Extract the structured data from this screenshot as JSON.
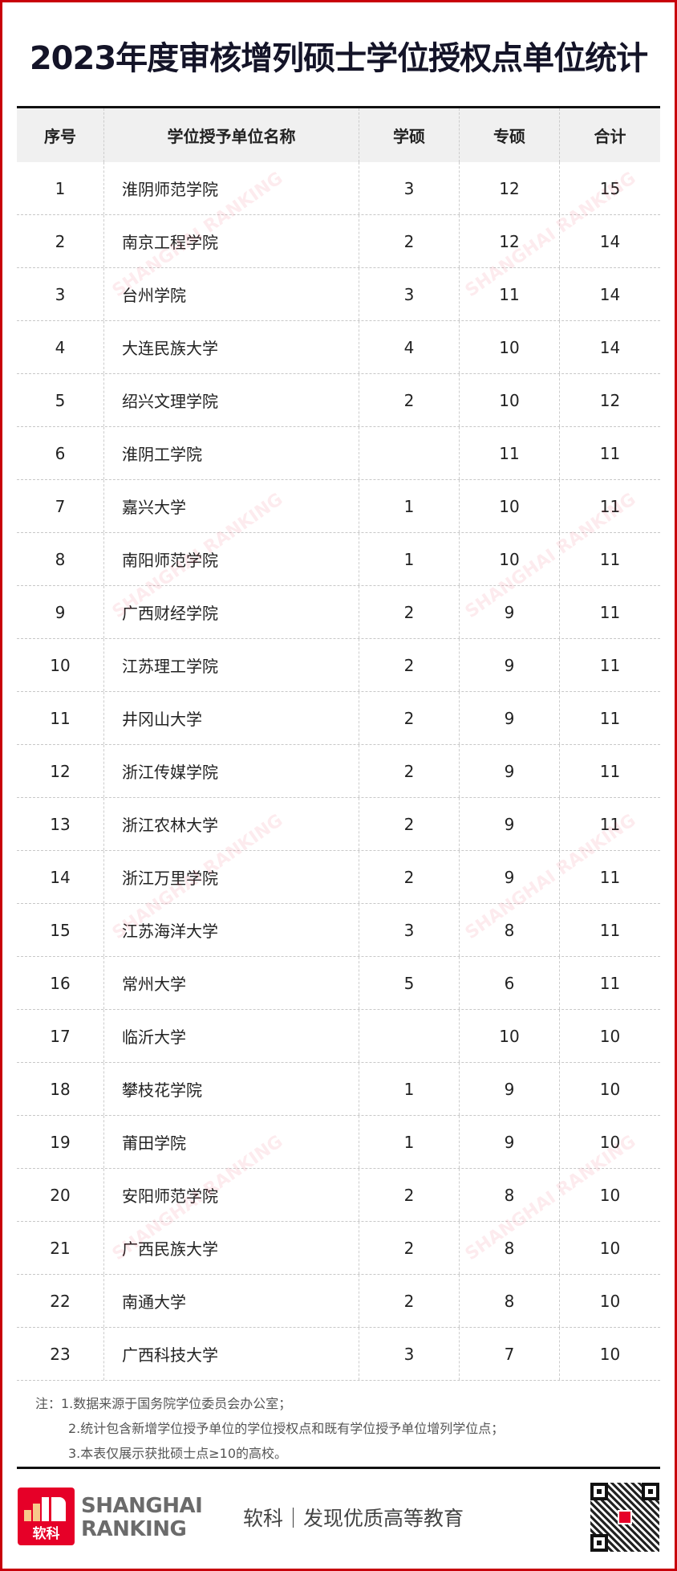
{
  "title": "2023年度审核增列硕士学位授权点单位统计",
  "table": {
    "headers": [
      "序号",
      "学位授予单位名称",
      "学硕",
      "专硕",
      "合计"
    ],
    "rows": [
      [
        "1",
        "淮阴师范学院",
        "3",
        "12",
        "15"
      ],
      [
        "2",
        "南京工程学院",
        "2",
        "12",
        "14"
      ],
      [
        "3",
        "台州学院",
        "3",
        "11",
        "14"
      ],
      [
        "4",
        "大连民族大学",
        "4",
        "10",
        "14"
      ],
      [
        "5",
        "绍兴文理学院",
        "2",
        "10",
        "12"
      ],
      [
        "6",
        "淮阴工学院",
        "",
        "11",
        "11"
      ],
      [
        "7",
        "嘉兴大学",
        "1",
        "10",
        "11"
      ],
      [
        "8",
        "南阳师范学院",
        "1",
        "10",
        "11"
      ],
      [
        "9",
        "广西财经学院",
        "2",
        "9",
        "11"
      ],
      [
        "10",
        "江苏理工学院",
        "2",
        "9",
        "11"
      ],
      [
        "11",
        "井冈山大学",
        "2",
        "9",
        "11"
      ],
      [
        "12",
        "浙江传媒学院",
        "2",
        "9",
        "11"
      ],
      [
        "13",
        "浙江农林大学",
        "2",
        "9",
        "11"
      ],
      [
        "14",
        "浙江万里学院",
        "2",
        "9",
        "11"
      ],
      [
        "15",
        "江苏海洋大学",
        "3",
        "8",
        "11"
      ],
      [
        "16",
        "常州大学",
        "5",
        "6",
        "11"
      ],
      [
        "17",
        "临沂大学",
        "",
        "10",
        "10"
      ],
      [
        "18",
        "攀枝花学院",
        "1",
        "9",
        "10"
      ],
      [
        "19",
        "莆田学院",
        "1",
        "9",
        "10"
      ],
      [
        "20",
        "安阳师范学院",
        "2",
        "8",
        "10"
      ],
      [
        "21",
        "广西民族大学",
        "2",
        "8",
        "10"
      ],
      [
        "22",
        "南通大学",
        "2",
        "8",
        "10"
      ],
      [
        "23",
        "广西科技大学",
        "3",
        "7",
        "10"
      ]
    ]
  },
  "notes": [
    "注：1.数据来源于国务院学位委员会办公室；",
    "2.统计包含新增学位授予单位的学位授权点和既有学位授予单位增列学位点；",
    "3.本表仅展示获批硕士点≥10的高校。"
  ],
  "footer": {
    "logo_text": "软科",
    "brand_line1": "SHANGHAI",
    "brand_line2": "RANKING",
    "tagline": "软科｜发现优质高等教育",
    "watermark": "SHANGHAI RANKING"
  },
  "colors": {
    "brand_red": "#e60028",
    "frame": "#c8000a"
  }
}
